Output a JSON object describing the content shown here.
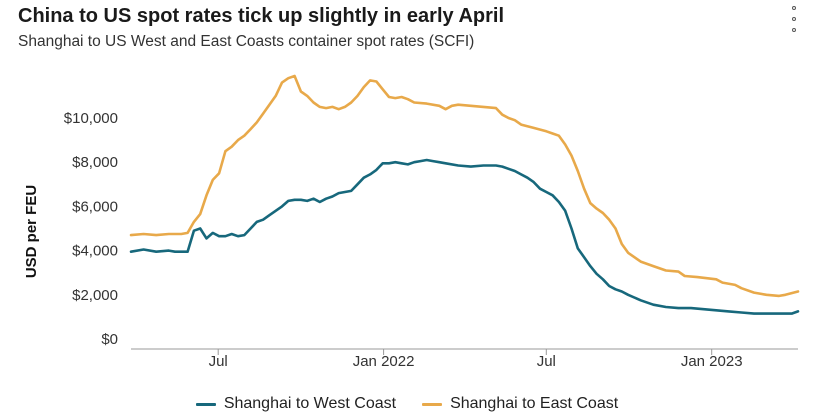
{
  "header": {
    "title": "China to US spot rates tick up slightly in early April",
    "subtitle": "Shanghai to US West and East Coasts container spot rates (SCFI)"
  },
  "menu_icon": "vertical-ellipsis-icon",
  "colors": {
    "west": "#17687c",
    "east": "#e8a94a",
    "axis": "#999999"
  },
  "chart_data": {
    "type": "line",
    "ylabel": "USD per FEU",
    "ylim": [
      0,
      12000
    ],
    "xlim": [
      "2021-03-26",
      "2023-04-07"
    ],
    "y_ticks": [
      {
        "value": 0,
        "label": "$0"
      },
      {
        "value": 2000,
        "label": "$2,000"
      },
      {
        "value": 4000,
        "label": "$4,000"
      },
      {
        "value": 6000,
        "label": "$6,000"
      },
      {
        "value": 8000,
        "label": "$8,000"
      },
      {
        "value": 10000,
        "label": "$10,000"
      }
    ],
    "x_ticks": [
      {
        "date": "2021-07-01",
        "label": "Jul"
      },
      {
        "date": "2022-01-01",
        "label": "Jan 2022"
      },
      {
        "date": "2022-07-01",
        "label": "Jul"
      },
      {
        "date": "2023-01-01",
        "label": "Jan 2023"
      }
    ],
    "series": [
      {
        "name": "Shanghai to West Coast",
        "color": "#17687c",
        "points": [
          [
            "2021-03-26",
            3950
          ],
          [
            "2021-04-09",
            4050
          ],
          [
            "2021-04-23",
            3950
          ],
          [
            "2021-05-07",
            4000
          ],
          [
            "2021-05-14",
            3950
          ],
          [
            "2021-05-28",
            3950
          ],
          [
            "2021-06-04",
            4900
          ],
          [
            "2021-06-11",
            5000
          ],
          [
            "2021-06-18",
            4550
          ],
          [
            "2021-06-25",
            4800
          ],
          [
            "2021-07-02",
            4650
          ],
          [
            "2021-07-09",
            4650
          ],
          [
            "2021-07-16",
            4750
          ],
          [
            "2021-07-23",
            4650
          ],
          [
            "2021-07-30",
            4700
          ],
          [
            "2021-08-06",
            5000
          ],
          [
            "2021-08-13",
            5300
          ],
          [
            "2021-08-20",
            5400
          ],
          [
            "2021-08-27",
            5600
          ],
          [
            "2021-09-03",
            5800
          ],
          [
            "2021-09-10",
            6000
          ],
          [
            "2021-09-17",
            6250
          ],
          [
            "2021-09-24",
            6300
          ],
          [
            "2021-10-01",
            6300
          ],
          [
            "2021-10-08",
            6250
          ],
          [
            "2021-10-15",
            6350
          ],
          [
            "2021-10-22",
            6200
          ],
          [
            "2021-10-29",
            6350
          ],
          [
            "2021-11-05",
            6450
          ],
          [
            "2021-11-12",
            6600
          ],
          [
            "2021-11-19",
            6650
          ],
          [
            "2021-11-26",
            6700
          ],
          [
            "2021-12-03",
            7000
          ],
          [
            "2021-12-10",
            7300
          ],
          [
            "2021-12-17",
            7450
          ],
          [
            "2021-12-24",
            7650
          ],
          [
            "2021-12-31",
            7950
          ],
          [
            "2022-01-07",
            7950
          ],
          [
            "2022-01-14",
            8000
          ],
          [
            "2022-01-21",
            7950
          ],
          [
            "2022-01-28",
            7900
          ],
          [
            "2022-02-04",
            8000
          ],
          [
            "2022-02-11",
            8050
          ],
          [
            "2022-02-18",
            8100
          ],
          [
            "2022-02-25",
            8050
          ],
          [
            "2022-03-04",
            8000
          ],
          [
            "2022-03-11",
            7950
          ],
          [
            "2022-03-25",
            7850
          ],
          [
            "2022-04-08",
            7800
          ],
          [
            "2022-04-22",
            7850
          ],
          [
            "2022-05-06",
            7850
          ],
          [
            "2022-05-13",
            7800
          ],
          [
            "2022-05-20",
            7700
          ],
          [
            "2022-05-27",
            7600
          ],
          [
            "2022-06-03",
            7450
          ],
          [
            "2022-06-10",
            7300
          ],
          [
            "2022-06-17",
            7100
          ],
          [
            "2022-06-24",
            6800
          ],
          [
            "2022-07-01",
            6650
          ],
          [
            "2022-07-08",
            6500
          ],
          [
            "2022-07-15",
            6200
          ],
          [
            "2022-07-22",
            5800
          ],
          [
            "2022-07-29",
            5000
          ],
          [
            "2022-08-05",
            4100
          ],
          [
            "2022-08-12",
            3700
          ],
          [
            "2022-08-19",
            3300
          ],
          [
            "2022-08-26",
            2950
          ],
          [
            "2022-09-02",
            2700
          ],
          [
            "2022-09-09",
            2400
          ],
          [
            "2022-09-16",
            2250
          ],
          [
            "2022-09-23",
            2150
          ],
          [
            "2022-09-30",
            2000
          ],
          [
            "2022-10-14",
            1750
          ],
          [
            "2022-10-28",
            1550
          ],
          [
            "2022-11-11",
            1450
          ],
          [
            "2022-11-25",
            1400
          ],
          [
            "2022-12-09",
            1400
          ],
          [
            "2022-12-23",
            1350
          ],
          [
            "2023-01-06",
            1300
          ],
          [
            "2023-01-20",
            1250
          ],
          [
            "2023-02-03",
            1200
          ],
          [
            "2023-02-17",
            1150
          ],
          [
            "2023-03-03",
            1150
          ],
          [
            "2023-03-24",
            1150
          ],
          [
            "2023-03-31",
            1150
          ],
          [
            "2023-04-07",
            1250
          ]
        ]
      },
      {
        "name": "Shanghai to East Coast",
        "color": "#e8a94a",
        "points": [
          [
            "2021-03-26",
            4700
          ],
          [
            "2021-04-09",
            4750
          ],
          [
            "2021-04-23",
            4700
          ],
          [
            "2021-05-07",
            4750
          ],
          [
            "2021-05-21",
            4750
          ],
          [
            "2021-05-28",
            4800
          ],
          [
            "2021-06-04",
            5300
          ],
          [
            "2021-06-11",
            5650
          ],
          [
            "2021-06-18",
            6500
          ],
          [
            "2021-06-25",
            7200
          ],
          [
            "2021-07-02",
            7500
          ],
          [
            "2021-07-09",
            8500
          ],
          [
            "2021-07-16",
            8700
          ],
          [
            "2021-07-23",
            9000
          ],
          [
            "2021-07-30",
            9200
          ],
          [
            "2021-08-06",
            9500
          ],
          [
            "2021-08-13",
            9800
          ],
          [
            "2021-08-20",
            10200
          ],
          [
            "2021-08-27",
            10600
          ],
          [
            "2021-09-03",
            11000
          ],
          [
            "2021-09-10",
            11600
          ],
          [
            "2021-09-17",
            11800
          ],
          [
            "2021-09-24",
            11900
          ],
          [
            "2021-10-01",
            11200
          ],
          [
            "2021-10-08",
            11000
          ],
          [
            "2021-10-15",
            10700
          ],
          [
            "2021-10-22",
            10500
          ],
          [
            "2021-10-29",
            10450
          ],
          [
            "2021-11-05",
            10500
          ],
          [
            "2021-11-12",
            10400
          ],
          [
            "2021-11-19",
            10500
          ],
          [
            "2021-11-26",
            10700
          ],
          [
            "2021-12-03",
            11000
          ],
          [
            "2021-12-10",
            11400
          ],
          [
            "2021-12-17",
            11700
          ],
          [
            "2021-12-24",
            11650
          ],
          [
            "2021-12-31",
            11300
          ],
          [
            "2022-01-07",
            10950
          ],
          [
            "2022-01-14",
            10900
          ],
          [
            "2022-01-21",
            10950
          ],
          [
            "2022-01-28",
            10850
          ],
          [
            "2022-02-04",
            10700
          ],
          [
            "2022-02-18",
            10650
          ],
          [
            "2022-03-04",
            10550
          ],
          [
            "2022-03-11",
            10400
          ],
          [
            "2022-03-18",
            10550
          ],
          [
            "2022-03-25",
            10600
          ],
          [
            "2022-04-08",
            10550
          ],
          [
            "2022-04-22",
            10500
          ],
          [
            "2022-05-06",
            10450
          ],
          [
            "2022-05-13",
            10150
          ],
          [
            "2022-05-20",
            10000
          ],
          [
            "2022-05-27",
            9900
          ],
          [
            "2022-06-03",
            9700
          ],
          [
            "2022-06-17",
            9550
          ],
          [
            "2022-07-01",
            9400
          ],
          [
            "2022-07-08",
            9300
          ],
          [
            "2022-07-15",
            9200
          ],
          [
            "2022-07-22",
            8800
          ],
          [
            "2022-07-29",
            8300
          ],
          [
            "2022-08-05",
            7600
          ],
          [
            "2022-08-12",
            6800
          ],
          [
            "2022-08-19",
            6150
          ],
          [
            "2022-08-26",
            5900
          ],
          [
            "2022-09-02",
            5700
          ],
          [
            "2022-09-09",
            5400
          ],
          [
            "2022-09-16",
            5000
          ],
          [
            "2022-09-23",
            4300
          ],
          [
            "2022-09-30",
            3900
          ],
          [
            "2022-10-07",
            3700
          ],
          [
            "2022-10-14",
            3500
          ],
          [
            "2022-10-28",
            3300
          ],
          [
            "2022-11-11",
            3100
          ],
          [
            "2022-11-25",
            3050
          ],
          [
            "2022-12-02",
            2850
          ],
          [
            "2022-12-16",
            2800
          ],
          [
            "2023-01-06",
            2700
          ],
          [
            "2023-01-13",
            2550
          ],
          [
            "2023-01-27",
            2450
          ],
          [
            "2023-02-03",
            2300
          ],
          [
            "2023-02-17",
            2100
          ],
          [
            "2023-03-03",
            2000
          ],
          [
            "2023-03-17",
            1950
          ],
          [
            "2023-03-24",
            2000
          ],
          [
            "2023-04-07",
            2150
          ]
        ]
      }
    ]
  }
}
